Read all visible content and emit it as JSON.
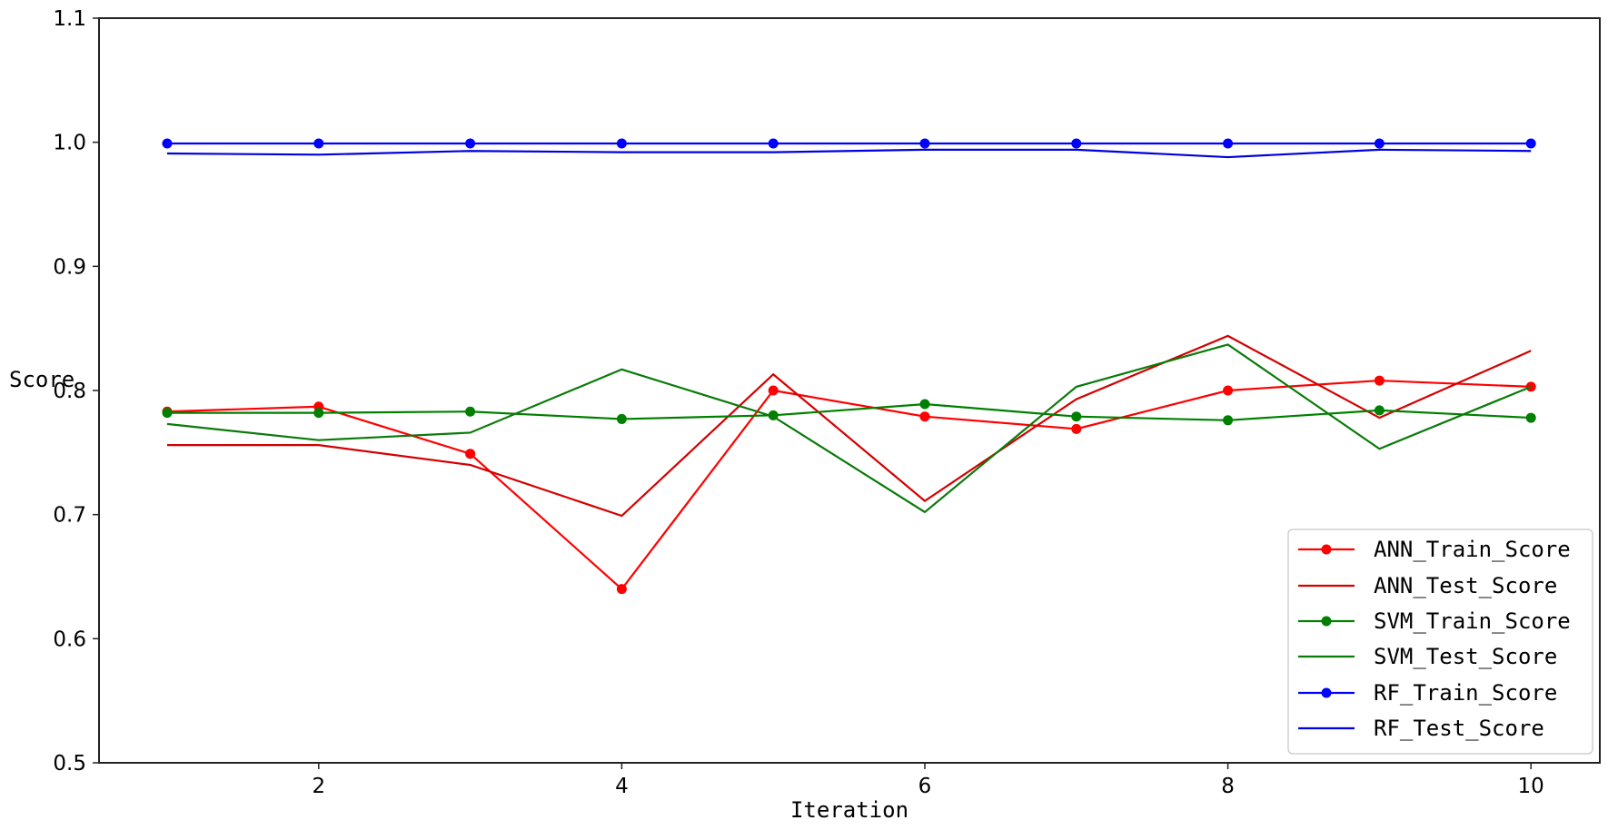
{
  "chart_data": {
    "type": "line",
    "title": "",
    "xlabel": "Iteration",
    "ylabel": "Score",
    "x": [
      1,
      2,
      3,
      4,
      5,
      6,
      7,
      8,
      9,
      10
    ],
    "xlim": [
      0.5,
      10.4
    ],
    "ylim": [
      0.5,
      1.1
    ],
    "xticks": [
      2,
      4,
      6,
      8,
      10
    ],
    "xtick_labels": [
      "2",
      "4",
      "6",
      "8",
      "10"
    ],
    "yticks": [
      0.5,
      0.6,
      0.7,
      0.8,
      0.9,
      1.0,
      1.1
    ],
    "ytick_labels": [
      "0.5",
      "0.6",
      "0.7",
      "0.8",
      "0.9",
      "1.0",
      "1.1"
    ],
    "grid": false,
    "legend_position": "lower right",
    "series": [
      {
        "name": "ANN_Train_Score",
        "color": "#ff0000",
        "marker": true,
        "values": [
          0.783,
          0.787,
          0.749,
          0.64,
          0.8,
          0.779,
          0.769,
          0.8,
          0.808,
          0.803
        ]
      },
      {
        "name": "ANN_Test_Score",
        "color": "#d40000",
        "marker": false,
        "values": [
          0.756,
          0.756,
          0.74,
          0.699,
          0.813,
          0.711,
          0.793,
          0.844,
          0.778,
          0.832
        ]
      },
      {
        "name": "SVM_Train_Score",
        "color": "#008000",
        "marker": true,
        "values": [
          0.782,
          0.782,
          0.783,
          0.777,
          0.78,
          0.789,
          0.779,
          0.776,
          0.784,
          0.778
        ]
      },
      {
        "name": "SVM_Test_Score",
        "color": "#0a7a0a",
        "marker": false,
        "values": [
          0.773,
          0.76,
          0.766,
          0.817,
          0.779,
          0.702,
          0.803,
          0.837,
          0.753,
          0.803
        ]
      },
      {
        "name": "RF_Train_Score",
        "color": "#0000ff",
        "marker": true,
        "values": [
          0.999,
          0.999,
          0.999,
          0.999,
          0.999,
          0.999,
          0.999,
          0.999,
          0.999,
          0.999
        ]
      },
      {
        "name": "RF_Test_Score",
        "color": "#0000e0",
        "marker": false,
        "values": [
          0.991,
          0.99,
          0.993,
          0.992,
          0.992,
          0.994,
          0.994,
          0.988,
          0.994,
          0.993
        ]
      }
    ]
  }
}
